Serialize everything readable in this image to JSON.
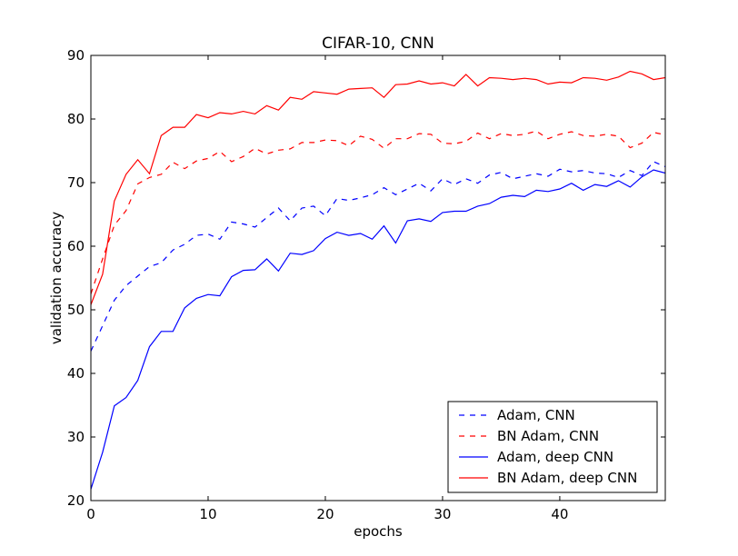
{
  "chart_data": {
    "type": "line",
    "title": "CIFAR-10, CNN",
    "xlabel": "epochs",
    "ylabel": "validation accuracy",
    "xlim": [
      0,
      49
    ],
    "ylim": [
      20,
      90
    ],
    "xticks": [
      0,
      10,
      20,
      30,
      40
    ],
    "yticks": [
      20,
      30,
      40,
      50,
      60,
      70,
      80,
      90
    ],
    "grid": false,
    "legend_position": "lower-right",
    "series": [
      {
        "name": "Adam, CNN",
        "color": "#0000ff",
        "linestyle": "dashed",
        "values": [
          43.5,
          47.5,
          51.5,
          53.8,
          55.3,
          56.8,
          57.4,
          59.4,
          60.3,
          61.7,
          61.9,
          61.1,
          63.8,
          63.5,
          63.0,
          64.5,
          66.0,
          64.0,
          66.0,
          66.3,
          64.8,
          67.5,
          67.2,
          67.6,
          68.1,
          69.2,
          68.1,
          69.0,
          69.9,
          68.7,
          70.6,
          69.7,
          70.6,
          69.9,
          71.2,
          71.6,
          70.6,
          71.0,
          71.4,
          71.0,
          72.1,
          71.7,
          71.9,
          71.5,
          71.4,
          70.8,
          71.9,
          71.1,
          73.3,
          72.5
        ]
      },
      {
        "name": "BN Adam, CNN",
        "color": "#ff0000",
        "linestyle": "dashed",
        "values": [
          52.5,
          58.0,
          63.3,
          65.6,
          69.8,
          70.8,
          71.3,
          73.2,
          72.2,
          73.4,
          73.8,
          74.9,
          73.3,
          74.1,
          75.4,
          74.5,
          75.1,
          75.3,
          76.3,
          76.3,
          76.7,
          76.6,
          75.8,
          77.3,
          76.8,
          75.4,
          76.9,
          76.9,
          77.7,
          77.6,
          76.2,
          76.1,
          76.5,
          77.8,
          76.9,
          77.7,
          77.4,
          77.6,
          78.1,
          76.9,
          77.6,
          78.0,
          77.4,
          77.3,
          77.6,
          77.3,
          75.5,
          76.2,
          77.9,
          77.5
        ]
      },
      {
        "name": "Adam, deep CNN",
        "color": "#0000ff",
        "linestyle": "solid",
        "values": [
          21.8,
          27.6,
          34.9,
          36.2,
          38.9,
          44.2,
          46.6,
          46.6,
          50.3,
          51.8,
          52.4,
          52.2,
          55.2,
          56.2,
          56.3,
          58.0,
          56.1,
          58.9,
          58.7,
          59.3,
          61.2,
          62.2,
          61.7,
          62.0,
          61.1,
          63.2,
          60.5,
          64.0,
          64.3,
          63.9,
          65.3,
          65.5,
          65.5,
          66.3,
          66.7,
          67.7,
          68.0,
          67.8,
          68.8,
          68.6,
          69.0,
          69.9,
          68.8,
          69.7,
          69.4,
          70.3,
          69.3,
          70.9,
          72.0,
          71.5
        ]
      },
      {
        "name": "BN Adam, deep CNN",
        "color": "#ff0000",
        "linestyle": "solid",
        "values": [
          50.8,
          55.6,
          67.1,
          71.3,
          73.6,
          71.4,
          77.4,
          78.7,
          78.7,
          80.7,
          80.2,
          81.0,
          80.8,
          81.2,
          80.8,
          82.1,
          81.4,
          83.4,
          83.1,
          84.3,
          84.1,
          83.9,
          84.7,
          84.8,
          84.9,
          83.4,
          85.4,
          85.5,
          86.0,
          85.5,
          85.7,
          85.2,
          87.0,
          85.2,
          86.5,
          86.4,
          86.2,
          86.4,
          86.2,
          85.5,
          85.8,
          85.7,
          86.5,
          86.4,
          86.1,
          86.6,
          87.5,
          87.1,
          86.2,
          86.5
        ]
      }
    ]
  }
}
